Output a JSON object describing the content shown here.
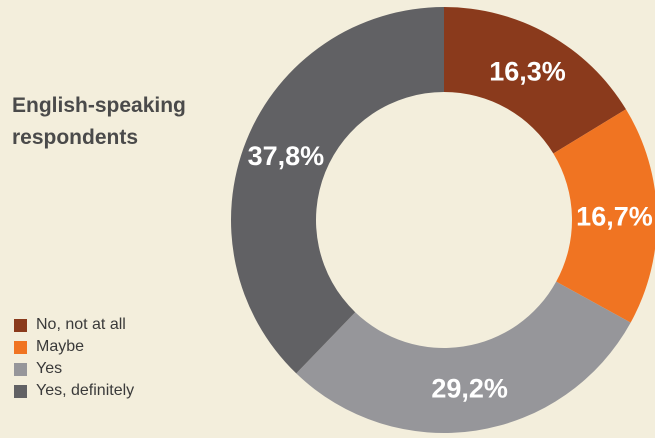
{
  "chart_data": {
    "type": "pie",
    "title_lines": [
      "English-speaking",
      "respondents"
    ],
    "categories": [
      "No, not at all",
      "Maybe",
      "Yes",
      "Yes, definitely"
    ],
    "values": [
      16.3,
      16.7,
      29.2,
      37.8
    ],
    "value_labels": [
      "16,3%",
      "16,7%",
      "29,2%",
      "37,8%"
    ],
    "colors": [
      "#8a3a1c",
      "#f07422",
      "#96969a",
      "#616164"
    ],
    "donut": true,
    "start_angle_deg": 0,
    "direction": "clockwise",
    "legend_position": "bottom-left"
  }
}
